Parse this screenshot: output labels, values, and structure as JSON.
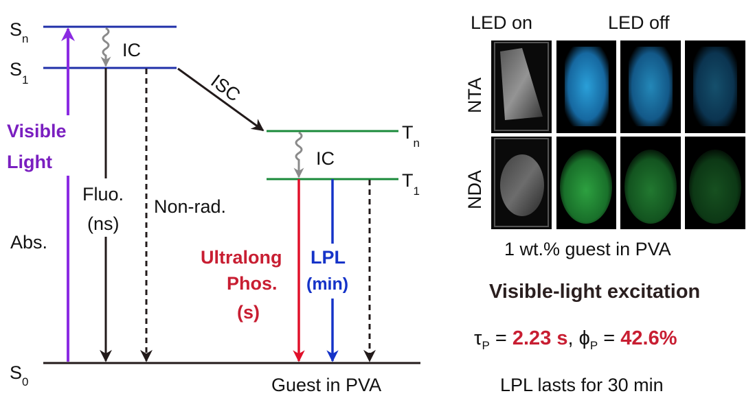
{
  "diagram": {
    "levels": {
      "sn": {
        "label": "S",
        "sub": "n"
      },
      "s1": {
        "label": "S",
        "sub": "1"
      },
      "tn": {
        "label": "T",
        "sub": "n"
      },
      "t1": {
        "label": "T",
        "sub": "1"
      },
      "s0": {
        "label": "S",
        "sub": "0"
      }
    },
    "ic_singlet": "IC",
    "ic_triplet": "IC",
    "isc": "ISC",
    "excitation": [
      "Visible",
      "Light"
    ],
    "abs": "Abs.",
    "fluo": [
      "Fluo.",
      "(ns)"
    ],
    "nonrad": "Non-rad.",
    "phos": [
      "Ultralong",
      "Phos.",
      "(s)"
    ],
    "lpl": [
      "LPL",
      "(min)"
    ],
    "matrix": "Guest in PVA",
    "colors": {
      "singlet": "#1f2fa8",
      "triplet": "#1a8a3a",
      "excitation": "#8b2be2",
      "phosphorescence": "#c81e32",
      "lpl": "#1533c8",
      "ic": "#8a8a8a"
    }
  },
  "photos": {
    "col_led_on": "LED on",
    "col_led_off": "LED off",
    "rows": [
      "NTA",
      "NDA"
    ],
    "caption": "1 wt.% guest in PVA"
  },
  "summary": {
    "title": "Visible-light excitation",
    "tau_symbol": "τ",
    "tau_sub": "P",
    "tau_value": "2.23 s",
    "phi_symbol": "ϕ",
    "phi_sub": "P",
    "phi_value": "42.6%",
    "duration": "LPL lasts for 30 min"
  }
}
